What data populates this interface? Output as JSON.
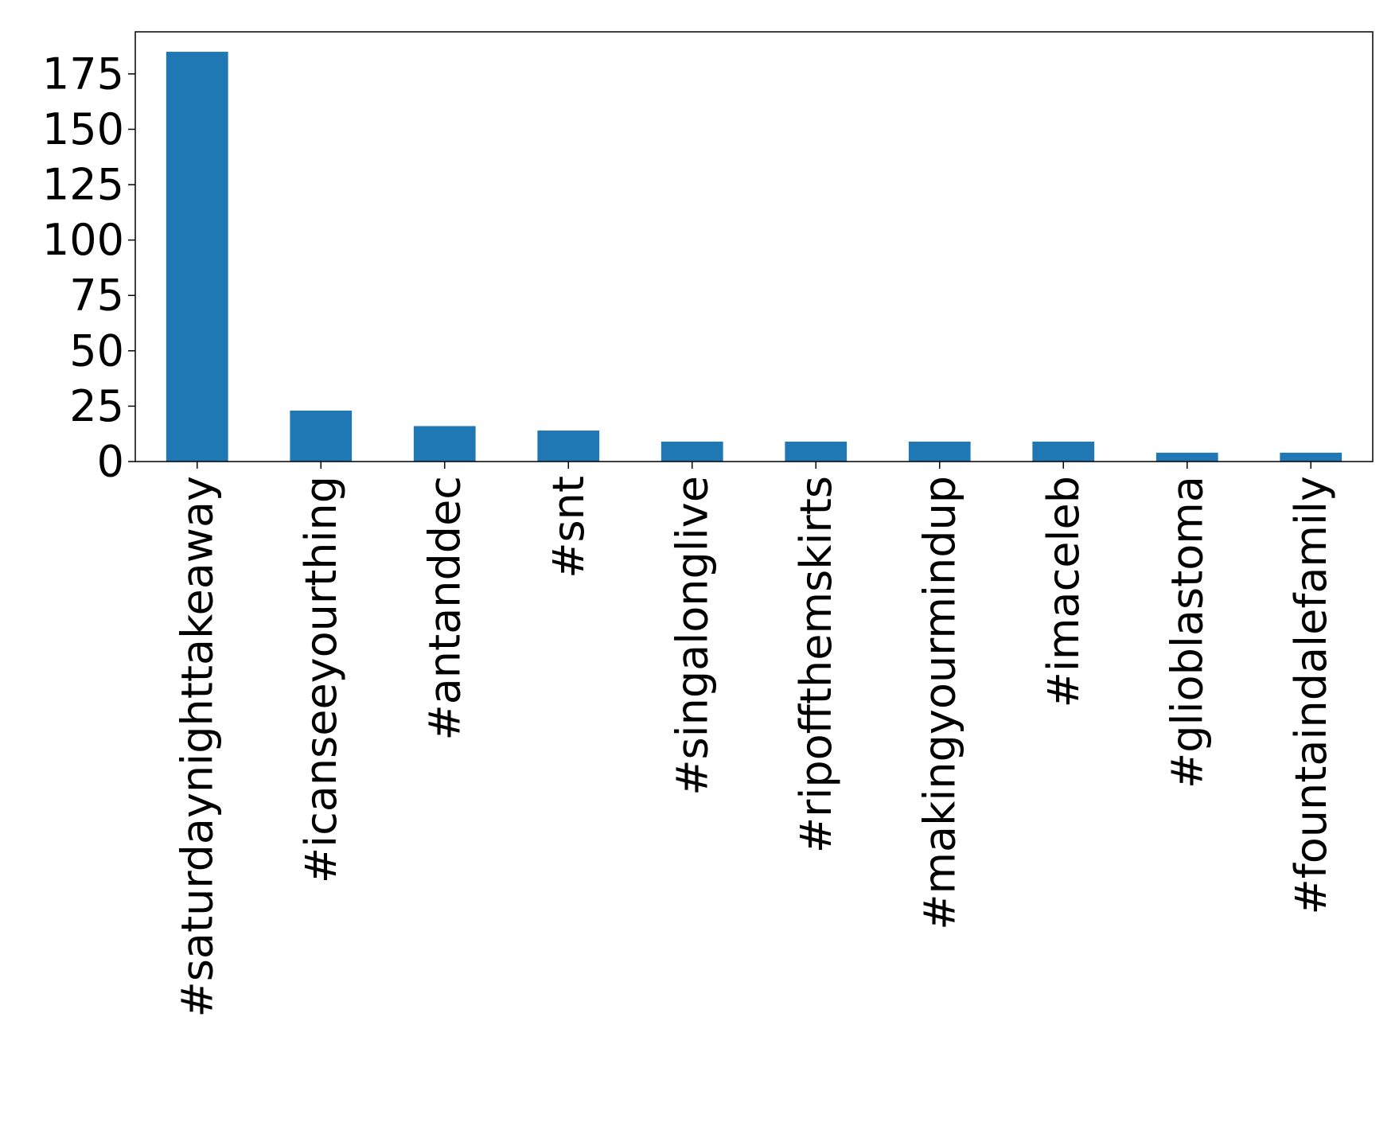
{
  "chart_data": {
    "type": "bar",
    "title": "",
    "xlabel": "",
    "ylabel": "",
    "categories": [
      "#saturdaynighttakeaway",
      "#icanseeyourthing",
      "#antanddec",
      "#snt",
      "#singalonglive",
      "#ripoffthemskirts",
      "#makingyourmindup",
      "#imaceleb",
      "#glioblastoma",
      "#fountaindalefamily"
    ],
    "values": [
      185,
      23,
      16,
      14,
      9,
      9,
      9,
      9,
      4,
      4
    ],
    "ylim": [
      0,
      194
    ],
    "yticks": [
      0,
      25,
      50,
      75,
      100,
      125,
      150,
      175
    ],
    "grid": false,
    "legend": "none",
    "bar_color": "#1f77b4"
  }
}
